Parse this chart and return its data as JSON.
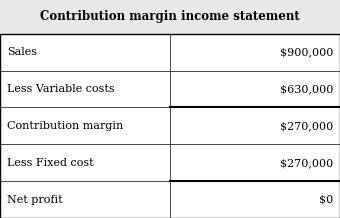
{
  "title": "Contribution margin income statement",
  "rows": [
    [
      "Sales",
      "$900,000"
    ],
    [
      "Less Variable costs",
      "$630,000"
    ],
    [
      "Contribution margin",
      "$270,000"
    ],
    [
      "Less Fixed cost",
      "$270,000"
    ],
    [
      "Net profit",
      "$0"
    ]
  ],
  "underline_after_rows": [
    1,
    3
  ],
  "col_split": 0.5,
  "bg_color": "#ffffff",
  "header_bg": "#e8e8e8",
  "border_color": "#000000",
  "title_fontsize": 8.5,
  "row_fontsize": 8.0,
  "fig_width": 3.4,
  "fig_height": 2.18,
  "dpi": 100
}
